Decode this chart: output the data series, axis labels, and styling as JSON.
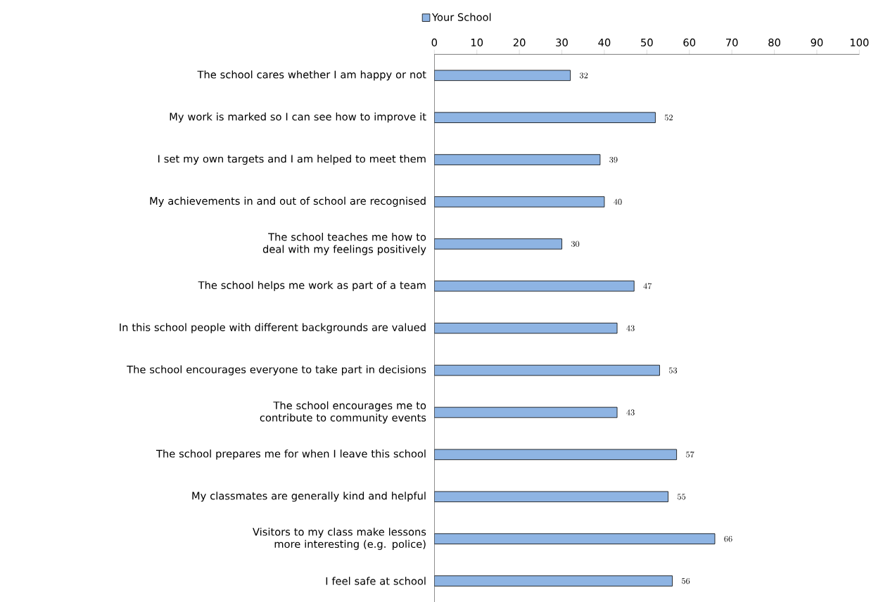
{
  "chart_data": {
    "type": "bar",
    "orientation": "horizontal",
    "categories": [
      "The school cares whether I am happy or not",
      "My work is marked so I can see how to improve it",
      "I set my own targets and I am helped to meet them",
      "My achievements in and out of school are recognised",
      "The school teaches me how to deal with my feelings positively",
      "The school helps me work as part of a team",
      "In this school people with different backgrounds are valued",
      "The school encourages everyone to take part in decisions",
      "The school encourages me to contribute to community events",
      "The school prepares me for when I leave this school",
      "My classmates are generally kind and helpful",
      "Visitors to my class make lessons more interesting (e.g. police)",
      "I feel safe at school"
    ],
    "series": [
      {
        "name": "Your School",
        "color": "#8eb4e3",
        "values": [
          32,
          52,
          39,
          40,
          30,
          47,
          43,
          53,
          43,
          57,
          55,
          66,
          56
        ]
      }
    ],
    "xlim": [
      0,
      100
    ],
    "xticks": [
      0,
      10,
      20,
      30,
      40,
      50,
      60,
      70,
      80,
      90,
      100
    ],
    "data_labels": true,
    "legend": "top",
    "grid": false
  }
}
